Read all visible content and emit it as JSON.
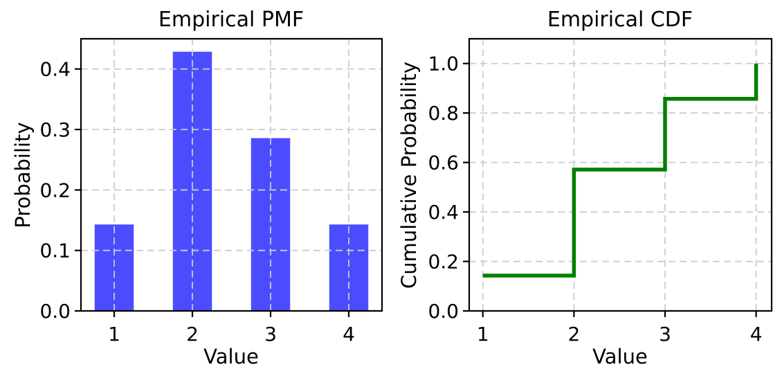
{
  "figure": {
    "background": "#ffffff"
  },
  "chart_data": [
    {
      "type": "bar",
      "title": "Empirical PMF",
      "xlabel": "Value",
      "ylabel": "Probability",
      "categories": [
        1,
        2,
        3,
        4
      ],
      "values": [
        0.1429,
        0.4286,
        0.2857,
        0.1429
      ],
      "bar_color": "#4C4CFF",
      "bar_width": 0.5,
      "xlim": [
        0.575,
        4.425
      ],
      "ylim": [
        0,
        0.45
      ],
      "xticks": [
        1,
        2,
        3,
        4
      ],
      "xtick_labels": [
        "1",
        "2",
        "3",
        "4"
      ],
      "yticks": [
        0.0,
        0.1,
        0.2,
        0.3,
        0.4
      ],
      "ytick_labels": [
        "0.0",
        "0.1",
        "0.2",
        "0.3",
        "0.4"
      ],
      "grid": true,
      "grid_color": "#cccccc",
      "grid_style": "dashed",
      "grid_above_data": true,
      "legend": "none"
    },
    {
      "type": "line",
      "subtype": "step-post",
      "title": "Empirical CDF",
      "xlabel": "Value",
      "ylabel": "Cumulative Probability",
      "x": [
        1,
        2,
        3,
        4
      ],
      "y": [
        0.1429,
        0.5714,
        0.8571,
        1.0
      ],
      "line_color": "#008000",
      "line_width": 5.5,
      "xlim": [
        0.85,
        4.17
      ],
      "ylim": [
        0,
        1.1
      ],
      "xticks": [
        1,
        2,
        3,
        4
      ],
      "xtick_labels": [
        "1",
        "2",
        "3",
        "4"
      ],
      "yticks": [
        0.0,
        0.2,
        0.4,
        0.6,
        0.8,
        1.0
      ],
      "ytick_labels": [
        "0.0",
        "0.2",
        "0.4",
        "0.6",
        "0.8",
        "1.0"
      ],
      "grid": true,
      "grid_color": "#cccccc",
      "grid_style": "dashed",
      "grid_above_data": false,
      "legend": "none"
    }
  ]
}
